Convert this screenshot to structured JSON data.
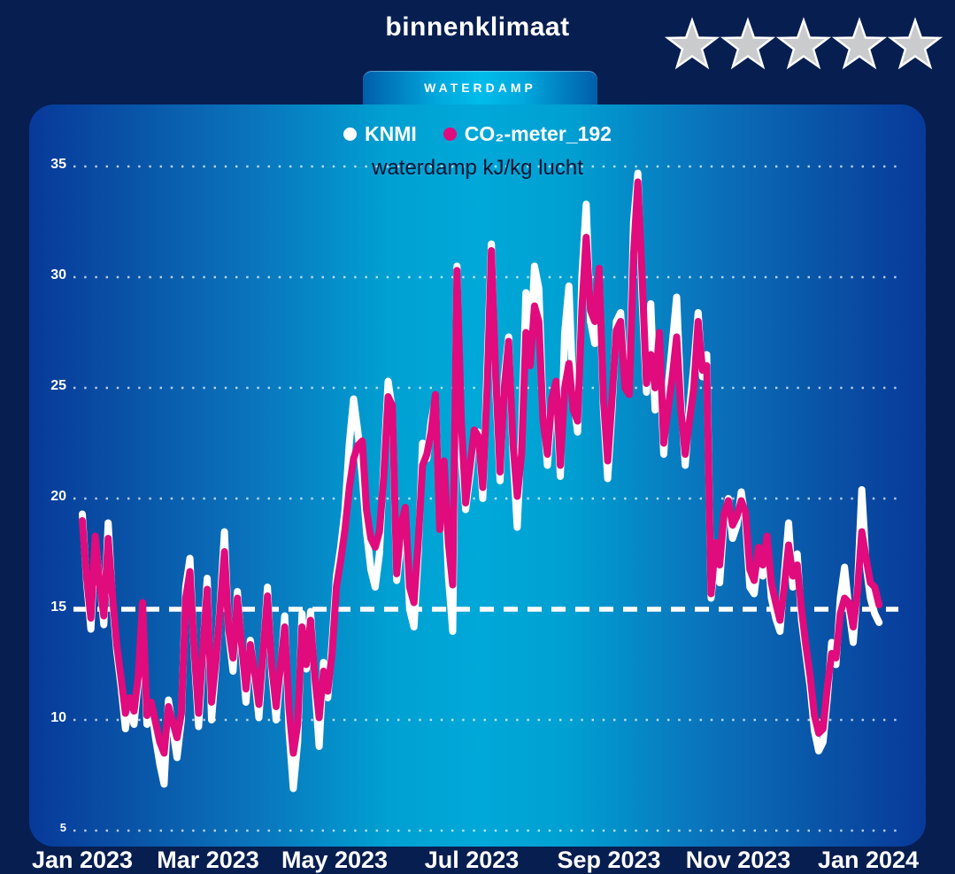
{
  "header": {
    "title": "binnenklimaat",
    "rating_stars": 5,
    "rating_icon": "star",
    "star_color": "#c9cbcd"
  },
  "tab": {
    "label": "WATERDAMP"
  },
  "legend": [
    {
      "label": "KNMI",
      "color": "#ffffff"
    },
    {
      "label": "CO₂-meter_192",
      "color": "#e00b7d"
    }
  ],
  "colors": {
    "page_background": "#071e50",
    "panel_center": "#00a8d8",
    "panel_edge": "#08399a",
    "pink_series": "#e00b7d",
    "white_series": "#ffffff"
  },
  "chart_data": {
    "type": "line",
    "title": "waterdamp kJ/kg lucht",
    "xlabel": "",
    "ylabel": "waterdamp kJ/kg lucht",
    "ylim": [
      5,
      35
    ],
    "y_ticks": [
      35,
      30,
      25,
      20,
      15,
      10,
      5
    ],
    "x_tick_labels": [
      "Jan 2023",
      "Mar 2023",
      "May 2023",
      "Jul 2023",
      "Sep 2023",
      "Nov 2023",
      "Jan 2024"
    ],
    "grid": "dotted horizontal lines",
    "legend_position": "top-center",
    "reference_line": {
      "value": 15,
      "style": "dashed",
      "color": "#ffffff"
    },
    "x_span_days": 365,
    "step_days": 2,
    "x_start": "2023-01-01",
    "series": [
      {
        "name": "KNMI",
        "color": "#ffffff",
        "values": [
          19.3,
          16.2,
          14.1,
          18.1,
          16.4,
          14.3,
          18.9,
          15.4,
          13.1,
          11.5,
          9.6,
          10.9,
          9.8,
          11.8,
          14.9,
          9.8,
          10.6,
          9.2,
          8.0,
          7.1,
          10.9,
          9.6,
          8.3,
          10.0,
          16.0,
          17.3,
          12.9,
          9.7,
          13.0,
          16.4,
          10.0,
          12.4,
          15.2,
          18.5,
          13.9,
          12.2,
          15.8,
          13.2,
          10.8,
          13.6,
          12.0,
          10.1,
          13.0,
          16.0,
          12.1,
          10.0,
          12.2,
          14.7,
          9.5,
          6.9,
          9.0,
          14.8,
          12.3,
          14.9,
          11.5,
          8.8,
          12.6,
          11.0,
          13.5,
          16.5,
          17.8,
          19.5,
          22.5,
          24.5,
          23.0,
          21.0,
          18.5,
          16.8,
          16.0,
          17.5,
          21.5,
          25.3,
          24.0,
          16.3,
          18.0,
          19.3,
          15.0,
          14.2,
          17.5,
          22.5,
          21.8,
          23.5,
          24.5,
          19.0,
          21.3,
          16.5,
          14.0,
          30.5,
          22.0,
          19.5,
          21.0,
          22.8,
          23.0,
          20.0,
          26.0,
          31.5,
          25.0,
          20.8,
          25.5,
          27.3,
          22.0,
          18.7,
          23.0,
          29.3,
          26.5,
          30.5,
          29.5,
          24.0,
          21.5,
          24.0,
          24.8,
          21.0,
          27.5,
          29.6,
          24.5,
          23.0,
          30.0,
          33.3,
          28.0,
          27.0,
          30.3,
          24.0,
          20.9,
          24.0,
          28.0,
          28.4,
          25.5,
          25.0,
          32.5,
          34.7,
          29.0,
          24.8,
          28.8,
          24.0,
          26.5,
          22.0,
          25.0,
          27.0,
          29.1,
          24.5,
          21.5,
          24.0,
          26.0,
          28.4,
          25.5,
          26.5,
          15.5,
          17.5,
          16.2,
          19.0,
          20.0,
          18.2,
          18.8,
          20.3,
          19.0,
          16.0,
          15.7,
          17.3,
          16.5,
          18.0,
          15.5,
          14.6,
          14.0,
          16.5,
          18.9,
          16.0,
          17.5,
          14.5,
          13.0,
          11.5,
          9.5,
          8.6,
          9.0,
          11.0,
          13.5,
          12.5,
          15.5,
          16.9,
          15.0,
          13.5,
          16.0,
          20.4,
          17.0,
          15.5,
          14.8,
          14.4
        ]
      },
      {
        "name": "CO₂-meter_192",
        "color": "#e00b7d",
        "values": [
          19.0,
          16.4,
          14.6,
          18.3,
          16.2,
          14.7,
          18.2,
          15.6,
          13.4,
          11.9,
          10.3,
          11.0,
          10.4,
          12.0,
          15.3,
          10.2,
          10.8,
          9.9,
          9.0,
          8.5,
          10.6,
          9.9,
          9.2,
          10.3,
          15.5,
          16.7,
          13.1,
          10.3,
          13.2,
          15.9,
          10.8,
          12.6,
          15.0,
          17.6,
          14.1,
          12.8,
          15.5,
          13.4,
          11.4,
          13.4,
          12.2,
          10.7,
          13.1,
          15.6,
          12.4,
          10.6,
          12.4,
          14.2,
          10.5,
          8.5,
          9.8,
          14.2,
          12.5,
          14.5,
          11.9,
          10.1,
          12.2,
          11.3,
          13.0,
          16.0,
          17.2,
          18.6,
          20.5,
          21.8,
          22.4,
          22.6,
          19.5,
          18.2,
          17.8,
          18.5,
          21.0,
          24.6,
          24.2,
          16.6,
          18.8,
          19.6,
          16.0,
          15.3,
          18.0,
          21.5,
          22.0,
          23.0,
          24.7,
          18.6,
          21.7,
          18.0,
          16.1,
          30.3,
          23.5,
          19.8,
          21.4,
          23.1,
          22.8,
          20.5,
          25.0,
          31.2,
          25.5,
          21.2,
          25.0,
          27.1,
          22.5,
          20.1,
          22.0,
          27.5,
          26.0,
          28.7,
          28.0,
          23.5,
          22.0,
          24.5,
          25.3,
          21.5,
          25.0,
          26.1,
          24.0,
          23.5,
          28.5,
          31.8,
          28.5,
          28.0,
          30.4,
          24.5,
          21.7,
          24.5,
          27.6,
          28.0,
          25.0,
          24.7,
          31.0,
          34.3,
          30.0,
          25.2,
          26.5,
          25.0,
          27.5,
          22.5,
          24.0,
          25.5,
          27.3,
          24.0,
          22.0,
          23.5,
          25.0,
          28.0,
          25.8,
          26.0,
          15.7,
          18.0,
          17.0,
          19.3,
          19.9,
          18.8,
          19.2,
          19.9,
          19.4,
          16.8,
          16.3,
          17.8,
          17.0,
          18.3,
          16.2,
          15.3,
          14.5,
          16.0,
          17.9,
          16.5,
          17.0,
          15.0,
          13.4,
          12.0,
          10.2,
          9.4,
          9.6,
          11.5,
          13.0,
          12.8,
          14.8,
          15.5,
          15.3,
          14.2,
          15.8,
          18.5,
          17.3,
          16.2,
          16.0,
          15.2
        ]
      }
    ]
  }
}
